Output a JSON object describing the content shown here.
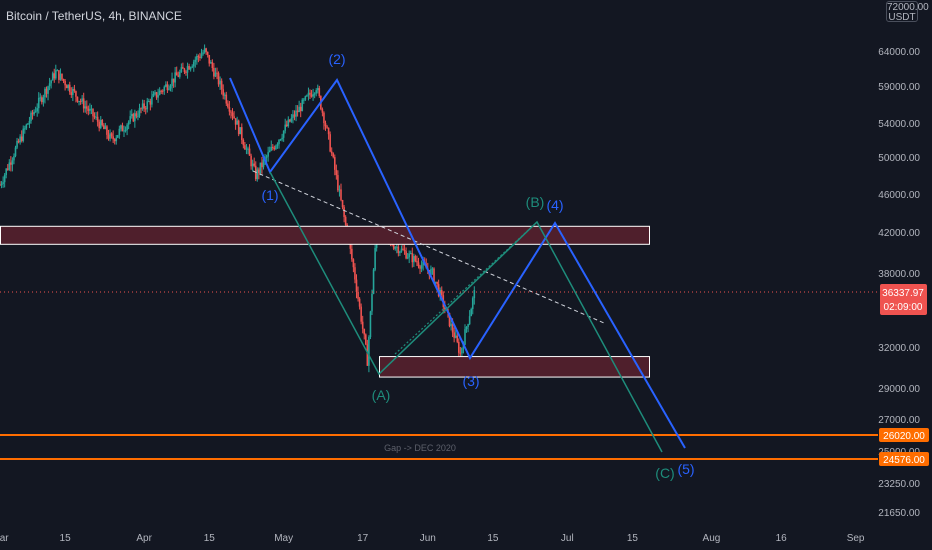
{
  "header": {
    "title": "Bitcoin / TetherUS, 4h, BINANCE",
    "unit_top": "USDT",
    "unit_top_price": "72000.00"
  },
  "price_axis": {
    "ticks": [
      "64000.00",
      "59000.00",
      "54000.00",
      "50000.00",
      "46000.00",
      "42000.00",
      "38000.00",
      "32000.00",
      "29000.00",
      "27000.00",
      "25000.00",
      "23250.00",
      "21650.00"
    ]
  },
  "time_axis": {
    "ticks": [
      "Mar",
      "15",
      "Apr",
      "15",
      "May",
      "17",
      "Jun",
      "15",
      "Jul",
      "15",
      "Aug",
      "16",
      "Sep"
    ]
  },
  "badges": {
    "current_price": "36337.97",
    "countdown": "02:09:00",
    "level_upper": "26020.00",
    "level_lower": "24576.00"
  },
  "annotations": {
    "gap_text": "Gap -> DEC 2020",
    "wave_labels": [
      "(1)",
      "(2)",
      "(3)",
      "(4)",
      "(5)"
    ],
    "corrective_labels": [
      "(A)",
      "(B)",
      "(C)"
    ]
  },
  "colors": {
    "background": "#131722",
    "candle_up": "#26a69a",
    "candle_down": "#ef5350",
    "wave_line": "#2962ff",
    "abc_line": "#1e8c7b",
    "zone_fill": "#4f1f2c",
    "level_line": "#ff6d00",
    "price_badge": "#ef5350"
  },
  "chart_data": {
    "type": "candlestick",
    "symbol": "Bitcoin / TetherUS",
    "interval": "4h",
    "exchange": "BINANCE",
    "x_range": [
      "2021-03-01",
      "2021-09-05"
    ],
    "y_range": [
      21000,
      72000
    ],
    "price_key_points": [
      {
        "date": "2021-03-01",
        "price": 47000
      },
      {
        "date": "2021-03-13",
        "price": 61000
      },
      {
        "date": "2021-03-25",
        "price": 52000
      },
      {
        "date": "2021-04-14",
        "price": 64000
      },
      {
        "date": "2021-04-25",
        "price": 48000
      },
      {
        "date": "2021-05-08",
        "price": 59000
      },
      {
        "date": "2021-05-13",
        "price": 46000
      },
      {
        "date": "2021-05-19",
        "price": 31000
      },
      {
        "date": "2021-05-21",
        "price": 42000
      },
      {
        "date": "2021-06-02",
        "price": 38000
      },
      {
        "date": "2021-06-08",
        "price": 31500
      },
      {
        "date": "2021-06-11",
        "price": 36338
      }
    ],
    "current_price": 36337.97,
    "horizontal_levels": [
      26020,
      24576
    ],
    "zones": [
      {
        "top": 42600,
        "bottom": 40800
      },
      {
        "top": 31300,
        "bottom": 29800
      }
    ],
    "waves": [
      {
        "label": "(1)",
        "date": "2021-04-23",
        "price": 48000
      },
      {
        "label": "(2)",
        "date": "2021-05-10",
        "price": 59500
      },
      {
        "label": "(3)",
        "date": "2021-06-08",
        "price": 31300
      },
      {
        "label": "(4)",
        "date": "2021-06-24",
        "price": 42500
      },
      {
        "label": "(5)",
        "date": "2021-07-22",
        "price": 24600
      }
    ],
    "abc": [
      {
        "label": "(A)",
        "date": "2021-05-19",
        "price": 29900
      },
      {
        "label": "(B)",
        "date": "2021-06-21",
        "price": 42500
      },
      {
        "label": "(C)",
        "date": "2021-07-19",
        "price": 24800
      }
    ]
  }
}
